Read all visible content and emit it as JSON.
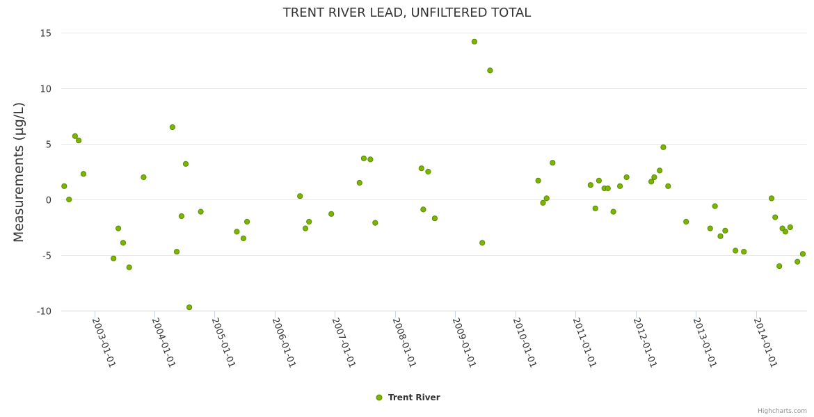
{
  "chart_data": {
    "type": "scatter",
    "title": "TRENT RIVER LEAD, UNFILTERED TOTAL",
    "xlabel": "",
    "ylabel": "Measurements (µg/L)",
    "ylim": [
      -10,
      15
    ],
    "yticks": [
      -10,
      -5,
      0,
      5,
      10,
      15
    ],
    "xlim": [
      2002.45,
      2014.85
    ],
    "xticks": [
      {
        "value": 2003,
        "label": "2003-01-01"
      },
      {
        "value": 2004,
        "label": "2004-01-01"
      },
      {
        "value": 2005,
        "label": "2005-01-01"
      },
      {
        "value": 2006,
        "label": "2006-01-01"
      },
      {
        "value": 2007,
        "label": "2007-01-01"
      },
      {
        "value": 2008,
        "label": "2008-01-01"
      },
      {
        "value": 2009,
        "label": "2009-01-01"
      },
      {
        "value": 2010,
        "label": "2010-01-01"
      },
      {
        "value": 2011,
        "label": "2011-01-01"
      },
      {
        "value": 2012,
        "label": "2012-01-01"
      },
      {
        "value": 2013,
        "label": "2013-01-01"
      },
      {
        "value": 2014,
        "label": "2014-01-01"
      }
    ],
    "grid": true,
    "legend_position": "bottom-center",
    "series": [
      {
        "name": "Trent River",
        "color": "#7cb500",
        "stroke": "#5a8a00",
        "points": [
          [
            2002.5,
            1.2
          ],
          [
            2002.58,
            0.0
          ],
          [
            2002.68,
            5.7
          ],
          [
            2002.74,
            5.3
          ],
          [
            2002.82,
            2.3
          ],
          [
            2003.32,
            -5.3
          ],
          [
            2003.4,
            -2.6
          ],
          [
            2003.48,
            -3.9
          ],
          [
            2003.58,
            -6.1
          ],
          [
            2003.82,
            2.0
          ],
          [
            2004.3,
            6.5
          ],
          [
            2004.37,
            -4.7
          ],
          [
            2004.45,
            -1.5
          ],
          [
            2004.52,
            3.2
          ],
          [
            2004.58,
            -9.7
          ],
          [
            2004.77,
            -1.1
          ],
          [
            2005.37,
            -2.9
          ],
          [
            2005.48,
            -3.5
          ],
          [
            2005.54,
            -2.0
          ],
          [
            2006.42,
            0.3
          ],
          [
            2006.51,
            -2.6
          ],
          [
            2006.57,
            -2.0
          ],
          [
            2006.94,
            -1.3
          ],
          [
            2007.41,
            1.5
          ],
          [
            2007.48,
            3.7
          ],
          [
            2007.59,
            3.6
          ],
          [
            2007.67,
            -2.1
          ],
          [
            2008.44,
            2.8
          ],
          [
            2008.47,
            -0.9
          ],
          [
            2008.55,
            2.5
          ],
          [
            2008.66,
            -1.7
          ],
          [
            2009.32,
            14.2
          ],
          [
            2009.45,
            -3.9
          ],
          [
            2009.58,
            11.6
          ],
          [
            2010.38,
            1.7
          ],
          [
            2010.46,
            -0.3
          ],
          [
            2010.52,
            0.1
          ],
          [
            2010.62,
            3.3
          ],
          [
            2011.25,
            1.3
          ],
          [
            2011.33,
            -0.8
          ],
          [
            2011.39,
            1.7
          ],
          [
            2011.48,
            1.0
          ],
          [
            2011.54,
            1.0
          ],
          [
            2011.63,
            -1.1
          ],
          [
            2011.74,
            1.2
          ],
          [
            2011.85,
            2.0
          ],
          [
            2012.26,
            1.6
          ],
          [
            2012.31,
            2.0
          ],
          [
            2012.4,
            2.6
          ],
          [
            2012.46,
            4.7
          ],
          [
            2012.54,
            1.2
          ],
          [
            2012.84,
            -2.0
          ],
          [
            2013.24,
            -2.6
          ],
          [
            2013.32,
            -0.6
          ],
          [
            2013.41,
            -3.3
          ],
          [
            2013.49,
            -2.8
          ],
          [
            2013.66,
            -4.6
          ],
          [
            2013.8,
            -4.7
          ],
          [
            2014.26,
            0.1
          ],
          [
            2014.32,
            -1.6
          ],
          [
            2014.39,
            -6.0
          ],
          [
            2014.44,
            -2.6
          ],
          [
            2014.49,
            -2.9
          ],
          [
            2014.57,
            -2.5
          ],
          [
            2014.69,
            -5.6
          ],
          [
            2014.78,
            -4.9
          ]
        ]
      }
    ],
    "credits": "Highcharts.com"
  }
}
